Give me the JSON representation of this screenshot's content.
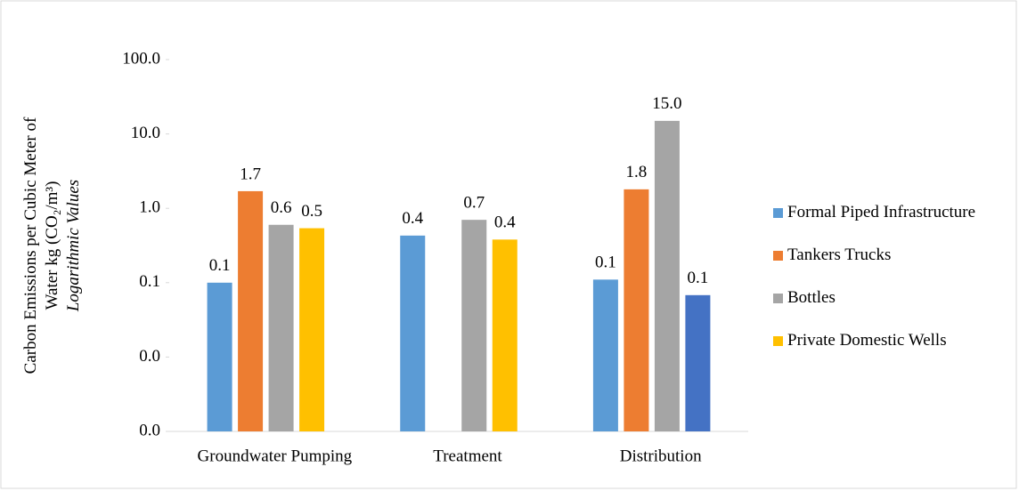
{
  "chart_data": {
    "type": "bar",
    "y_label": [
      "Carbon Emissions per Cubic Meter of",
      "Water kg (CO₂/m³)",
      "Logarithmic Values"
    ],
    "categories": [
      "Groundwater Pumping",
      "Treatment",
      "Distribution"
    ],
    "series": [
      {
        "name": "Formal Piped Infrastructure",
        "color": "#5b9bd5",
        "values": [
          0.1,
          0.43,
          0.11
        ],
        "value_labels": [
          "0.1",
          "0.4",
          "0.1"
        ]
      },
      {
        "name": "Tankers Trucks",
        "color": "#ed7d31",
        "values": [
          1.7,
          null,
          1.8
        ],
        "value_labels": [
          "1.7",
          null,
          "1.8"
        ]
      },
      {
        "name": "Bottles",
        "color": "#a5a5a5",
        "values": [
          0.6,
          0.7,
          15.0
        ],
        "value_labels": [
          "0.6",
          "0.7",
          "15.0"
        ]
      },
      {
        "name": "Private Domestic Wells",
        "color": "#ffc000",
        "colors": [
          null,
          null,
          "#4472c4"
        ],
        "values": [
          0.54,
          0.38,
          0.068
        ],
        "value_labels": [
          "0.5",
          "0.4",
          "0.1"
        ]
      }
    ],
    "log_scale": true,
    "ylim": [
      0.001,
      100
    ],
    "yticks": [
      {
        "value": 0.001,
        "label": "0.0"
      },
      {
        "value": 0.01,
        "label": "0.0"
      },
      {
        "value": 0.1,
        "label": "0.1"
      },
      {
        "value": 1,
        "label": "1.0"
      },
      {
        "value": 10,
        "label": "10.0"
      },
      {
        "value": 100,
        "label": "100.0"
      }
    ],
    "grid": false,
    "legend": "right"
  }
}
